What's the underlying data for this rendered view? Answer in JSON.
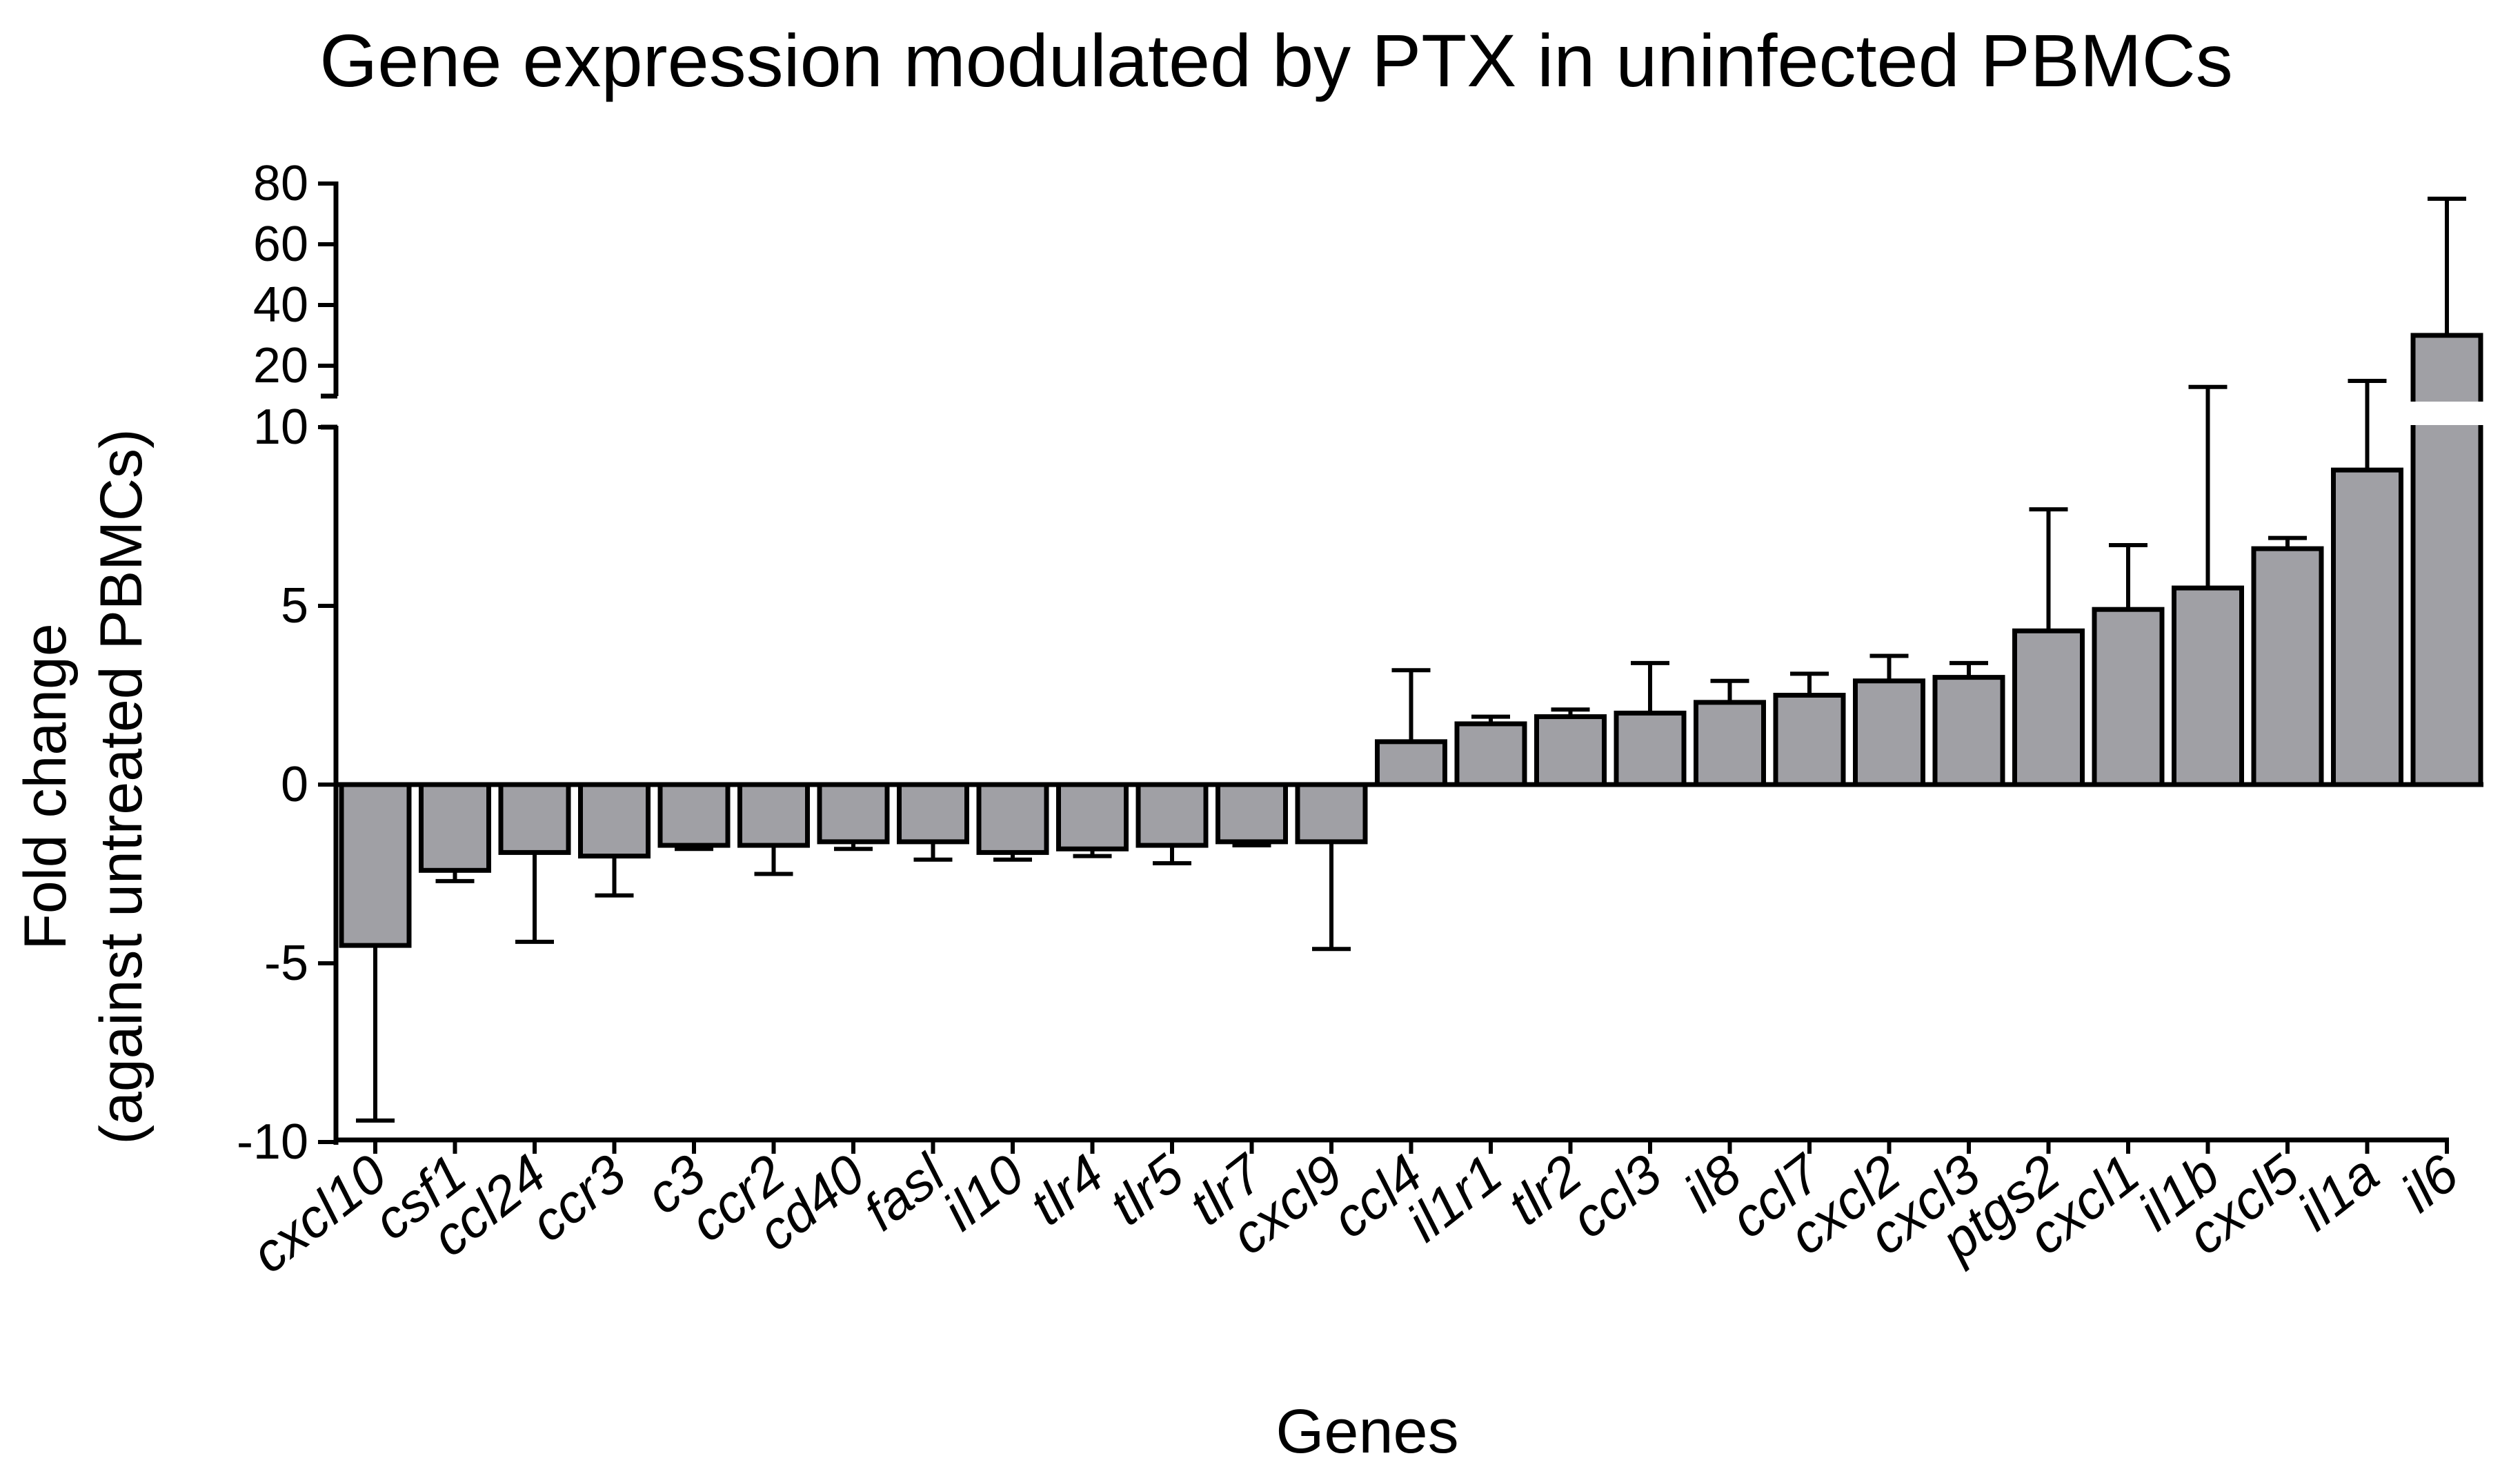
{
  "chart_data": {
    "type": "bar",
    "title": "Gene expression modulated by PTX in uninfected PBMCs",
    "xlabel": "Genes",
    "ylabel_line1": "Fold change",
    "ylabel_line2": "(against untreated PBMCs)",
    "categories": [
      "cxcl10",
      "csf1",
      "ccl24",
      "ccr3",
      "c3",
      "ccr2",
      "cd40",
      "fasl",
      "il10",
      "tlr4",
      "tlr5",
      "tlr7",
      "cxcl9",
      "ccl4",
      "il1r1",
      "tlr2",
      "ccl3",
      "il8",
      "ccl7",
      "cxcl2",
      "cxcl3",
      "ptgs2",
      "cxcl1",
      "il1b",
      "cxcl5",
      "il1a",
      "il6"
    ],
    "values": [
      -4.5,
      -2.4,
      -1.9,
      -2.0,
      -1.7,
      -1.7,
      -1.6,
      -1.6,
      -1.9,
      -1.8,
      -1.7,
      -1.6,
      -1.6,
      1.2,
      1.7,
      1.9,
      2.0,
      2.3,
      2.5,
      2.9,
      3.0,
      4.3,
      4.9,
      5.5,
      6.6,
      8.8,
      30
    ],
    "error_ends": [
      -9.4,
      -2.7,
      -4.4,
      -3.1,
      -1.8,
      -2.5,
      -1.8,
      -2.1,
      -2.1,
      -2.0,
      -2.2,
      -1.7,
      -4.6,
      3.2,
      1.9,
      2.1,
      3.4,
      2.9,
      3.1,
      3.6,
      3.4,
      7.7,
      6.7,
      13.0,
      6.9,
      15.0,
      75
    ],
    "y_lower_segment": {
      "range": [
        -10,
        10
      ],
      "ticks": [
        -10,
        -5,
        0,
        5,
        10
      ]
    },
    "y_upper_segment": {
      "range": [
        10,
        80
      ],
      "ticks": [
        20,
        40,
        60,
        80
      ]
    },
    "y_tick_labels": [
      "-10",
      "-5",
      "0",
      "5",
      "10",
      "20",
      "40",
      "60",
      "80"
    ],
    "axis_break": true,
    "bar_color": "#a0a0a5",
    "edge_color": "#000000",
    "grid": false,
    "legend": "none"
  }
}
